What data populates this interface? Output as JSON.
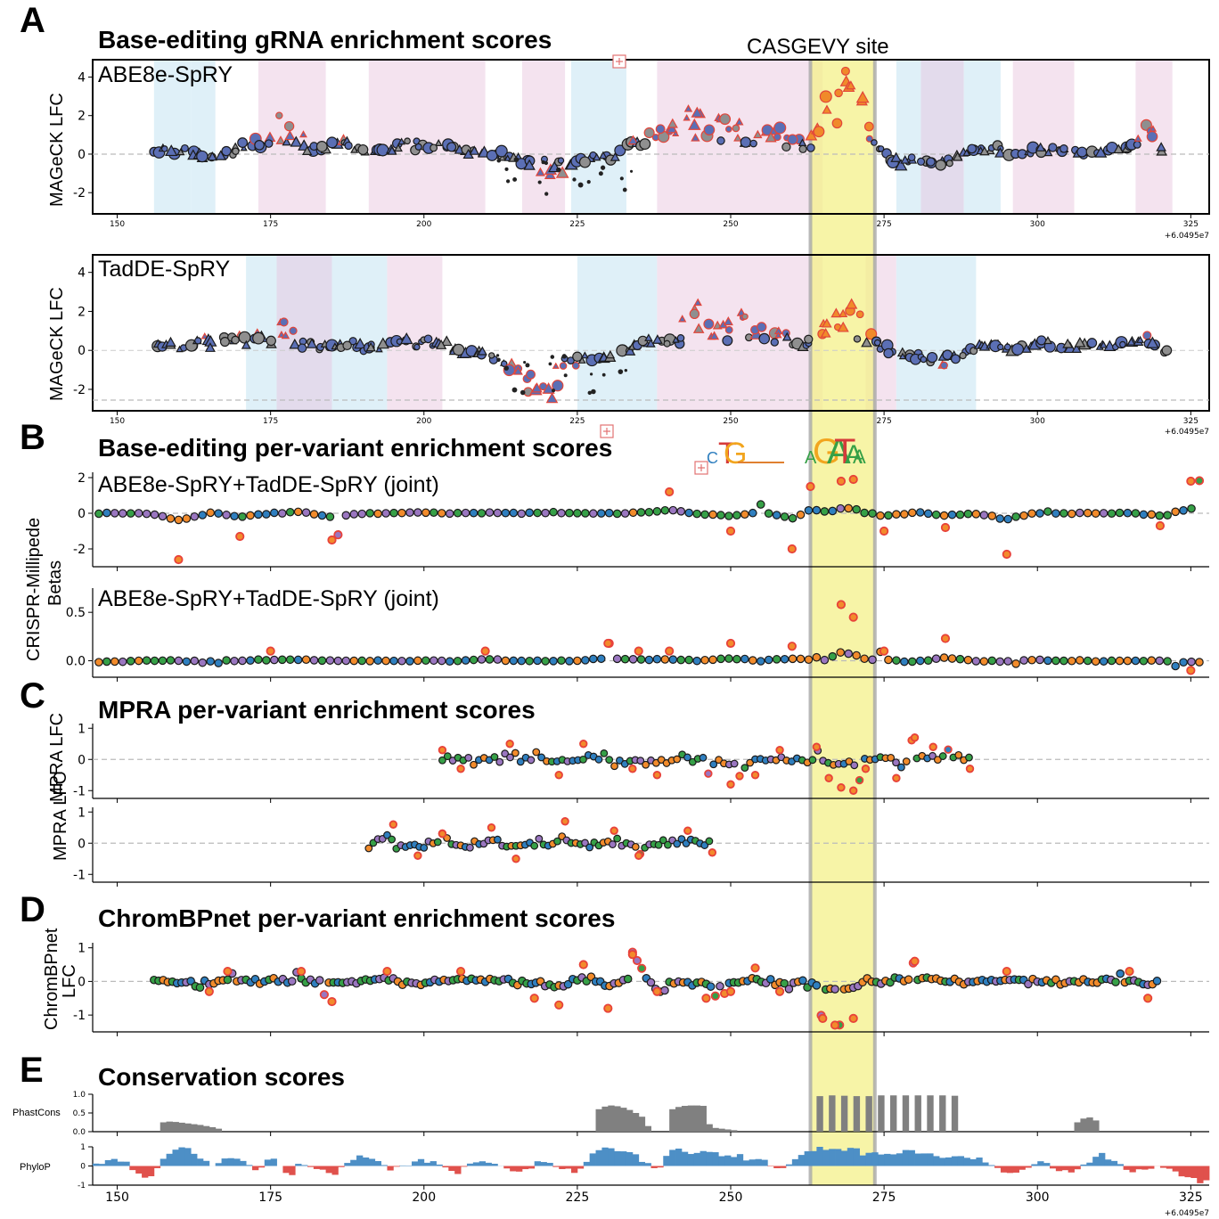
{
  "colors": {
    "highlight": "#f4f08a",
    "highlight_border": "#a8a8a8",
    "guide_blue": "#5b6fb5",
    "guide_grey": "#8f8f8f",
    "guide_red_edge": "#e2453a",
    "guide_orange": "#f08a2a",
    "variant_orange": "#f28b2b",
    "variant_blue": "#2f7fbf",
    "variant_green": "#36a047",
    "variant_purple": "#9a76c0",
    "variant_red_edge": "#e8423a",
    "shade_blue": "#dff0f8",
    "shade_pink": "#f4e3ef",
    "shade_purple": "#e3dbec",
    "phylop_pos": "#4d8fc6",
    "phylop_neg": "#e0514c",
    "phastcons": "#808080"
  },
  "highlight": {
    "label": "CASGEVY site",
    "x_range": [
      263,
      273.5
    ]
  },
  "sections": {
    "A": {
      "letter": "A",
      "title": "Base-editing gRNA enrichment scores"
    },
    "B": {
      "letter": "B",
      "title": "Base-editing per-variant enrichment scores"
    },
    "C": {
      "letter": "C",
      "title": "MPRA per-variant enrichment scores"
    },
    "D": {
      "letter": "D",
      "title": "ChromBPnet per-variant enrichment scores"
    },
    "E": {
      "letter": "E",
      "title": "Conservation scores"
    }
  },
  "panels": {
    "a1": {
      "label": "ABE8e-SpRY",
      "ylabel": "MAGeCK LFC",
      "yticks": [
        "4",
        "2",
        "0",
        "-2"
      ]
    },
    "a2": {
      "label": "TadDE-SpRY",
      "ylabel": "MAGeCK LFC",
      "yticks": [
        "4",
        "2",
        "0",
        "-2"
      ]
    },
    "b1": {
      "label": "ABE8e-SpRY+TadDE-SpRY (joint)",
      "yticks": [
        "2",
        "0",
        "-2"
      ]
    },
    "b2": {
      "label": "ABE8e-SpRY+TadDE-SpRY (joint)",
      "yticks": [
        "0.5",
        "0.0"
      ]
    },
    "b_ylabel_1": "CRISPR-Millipede",
    "b_ylabel_2": "Betas",
    "c1": {
      "ylabel": "",
      "yticks": [
        "1",
        "0",
        "-1"
      ]
    },
    "c2": {
      "ylabel": "MPRA LFC",
      "yticks": [
        "1",
        "0",
        "-1"
      ]
    },
    "c_ylabel_shared": "MPRA LFC",
    "d1": {
      "ylabel_1": "ChromBPnet",
      "ylabel_2": "LFC",
      "yticks": [
        "1",
        "0",
        "-1"
      ]
    },
    "e1": {
      "ylabel": "PhastCons",
      "yticks": [
        "1.0",
        "0.5",
        "0.0"
      ]
    },
    "e2": {
      "ylabel": "PhyloP",
      "yticks": [
        "1",
        "0",
        "-1"
      ]
    }
  },
  "x_axis": {
    "ticks": [
      "150",
      "175",
      "200",
      "225",
      "250",
      "275",
      "300",
      "325"
    ],
    "offset": "+6.0495e7"
  },
  "motif_logos": {
    "left": [
      "C",
      "T",
      "G"
    ],
    "right": [
      "A",
      "G",
      "A",
      "T",
      "A",
      "A"
    ]
  },
  "chart_data": [
    {
      "type": "scatter",
      "panel": "ABE8e-SpRY",
      "xlabel": "",
      "ylabel": "MAGeCK LFC",
      "xlim": [
        146,
        328
      ],
      "ylim": [
        -3.1,
        4.9
      ],
      "x_offset": "+6.0495e7",
      "series": [
        {
          "name": "",
          "x": [
            156,
            160,
            165,
            170,
            174,
            176,
            178,
            182,
            186,
            190,
            195,
            200,
            205,
            210,
            215,
            220,
            225,
            230,
            235,
            240,
            243,
            246,
            250,
            254,
            258,
            262,
            265,
            268,
            270,
            272,
            276,
            280,
            284,
            288,
            292,
            296,
            300,
            305,
            310,
            315,
            318,
            320
          ],
          "y": [
            0.1,
            0.2,
            -0.2,
            0.4,
            1.0,
            2.1,
            1.2,
            0.3,
            0.6,
            0.1,
            0.4,
            0.7,
            0.2,
            0.1,
            -0.3,
            -1.2,
            -0.3,
            -0.2,
            1.0,
            1.4,
            2.4,
            1.5,
            2.0,
            1.2,
            1.3,
            0.2,
            3.5,
            3.8,
            3.0,
            1.0,
            -0.6,
            -0.3,
            -0.5,
            0.2,
            0.3,
            0.0,
            0.3,
            0.2,
            0.1,
            0.4,
            1.5,
            0.1
          ]
        }
      ]
    },
    {
      "type": "scatter",
      "panel": "TadDE-SpRY",
      "xlabel": "",
      "ylabel": "MAGeCK LFC",
      "xlim": [
        146,
        328
      ],
      "ylim": [
        -3.1,
        4.9
      ],
      "x_offset": "+6.0495e7",
      "series": [
        {
          "name": "",
          "x": [
            156,
            160,
            165,
            170,
            174,
            176,
            178,
            182,
            186,
            190,
            195,
            200,
            205,
            210,
            215,
            220,
            225,
            230,
            235,
            240,
            243,
            246,
            250,
            254,
            258,
            262,
            265,
            268,
            270,
            272,
            276,
            280,
            284,
            288,
            292,
            296,
            300,
            305,
            310,
            315,
            318,
            320
          ],
          "y": [
            0.4,
            0.1,
            0.6,
            1.0,
            0.8,
            1.9,
            0.9,
            0.2,
            0.3,
            0.1,
            0.5,
            0.6,
            0.1,
            -0.2,
            -1.8,
            -2.2,
            -0.4,
            -0.3,
            0.4,
            0.8,
            2.7,
            1.3,
            1.8,
            1.0,
            0.9,
            0.0,
            2.6,
            2.8,
            1.9,
            0.6,
            -0.2,
            -0.4,
            -0.9,
            0.1,
            0.3,
            0.1,
            0.4,
            0.2,
            0.2,
            0.5,
            0.6,
            -0.2
          ]
        }
      ]
    },
    {
      "type": "scatter",
      "panel": "ABE8e-SpRY+TadDE-SpRY (joint) 1",
      "ylabel": "CRISPR-Millipede Betas",
      "xlim": [
        146,
        328
      ],
      "ylim": [
        -3,
        2.3
      ],
      "x_offset": "+6.0495e7",
      "series": [
        {
          "name": "",
          "x": [
            150,
            155,
            160,
            165,
            170,
            175,
            180,
            185,
            190,
            195,
            200,
            205,
            210,
            215,
            220,
            225,
            230,
            235,
            240,
            245,
            250,
            255,
            260,
            263,
            266,
            268,
            270,
            272,
            275,
            280,
            285,
            290,
            295,
            300,
            305,
            310,
            315,
            320,
            325
          ],
          "y": [
            0.0,
            0.0,
            -2.6,
            0.2,
            -1.3,
            0.0,
            0.5,
            -1.5,
            0.0,
            0.0,
            0.3,
            0.0,
            0.1,
            0.0,
            0.2,
            0.0,
            0.0,
            0.1,
            1.2,
            -0.3,
            -1.0,
            0.5,
            -2.0,
            1.5,
            0.5,
            1.8,
            1.9,
            0.1,
            -1.0,
            0.3,
            -0.8,
            0.0,
            -2.3,
            0.2,
            0.0,
            0.0,
            0.1,
            -0.7,
            1.8
          ]
        }
      ]
    },
    {
      "type": "scatter",
      "panel": "ABE8e-SpRY+TadDE-SpRY (joint) 2",
      "ylabel": "CRISPR-Millipede Betas",
      "xlim": [
        146,
        328
      ],
      "ylim": [
        -0.17,
        0.75
      ],
      "x_offset": "+6.0495e7",
      "series": [
        {
          "name": "",
          "x": [
            150,
            155,
            160,
            165,
            170,
            175,
            180,
            185,
            190,
            195,
            200,
            205,
            210,
            215,
            220,
            225,
            230,
            235,
            240,
            245,
            250,
            255,
            260,
            265,
            268,
            270,
            272,
            275,
            280,
            285,
            290,
            295,
            300,
            305,
            310,
            315,
            320,
            325
          ],
          "y": [
            -0.06,
            0.0,
            0.0,
            -0.03,
            0.0,
            0.1,
            0.08,
            0.0,
            0.0,
            0.0,
            0.0,
            0.0,
            0.1,
            0.0,
            0.0,
            0.0,
            0.18,
            0.1,
            0.1,
            0.0,
            0.18,
            0.0,
            0.15,
            0.0,
            0.58,
            0.45,
            0.06,
            0.1,
            -0.09,
            0.23,
            0.0,
            -0.06,
            0.05,
            0.0,
            0.0,
            0.0,
            0.0,
            -0.1
          ]
        }
      ]
    },
    {
      "type": "scatter",
      "panel": "MPRA 1",
      "ylabel": "MPRA LFC",
      "xlim": [
        146,
        328
      ],
      "ylim": [
        -1.25,
        1.15
      ],
      "x_offset": "+6.0495e7",
      "series": [
        {
          "name": "",
          "x": [
            203,
            206,
            210,
            214,
            218,
            222,
            226,
            230,
            234,
            238,
            242,
            246,
            250,
            254,
            258,
            262,
            264,
            266,
            268,
            270,
            272,
            274,
            277,
            280,
            283,
            286,
            289
          ],
          "y": [
            0.3,
            -0.3,
            0.1,
            0.5,
            0.2,
            -0.5,
            0.5,
            0.0,
            -0.3,
            -0.5,
            0.2,
            -0.2,
            -0.8,
            -0.5,
            0.3,
            -0.2,
            0.4,
            -0.6,
            -0.9,
            -1.0,
            -0.3,
            0.2,
            -0.6,
            0.7,
            0.4,
            0.1,
            -0.3
          ]
        }
      ]
    },
    {
      "type": "scatter",
      "panel": "MPRA 2",
      "ylabel": "MPRA LFC",
      "xlim": [
        146,
        328
      ],
      "ylim": [
        -1.25,
        1.15
      ],
      "x_offset": "+6.0495e7",
      "series": [
        {
          "name": "",
          "x": [
            191,
            195,
            199,
            203,
            207,
            211,
            215,
            219,
            223,
            227,
            231,
            235,
            239,
            243,
            247
          ],
          "y": [
            0.1,
            0.6,
            -0.4,
            0.3,
            -0.2,
            0.5,
            -0.5,
            0.1,
            0.7,
            -0.2,
            0.4,
            -0.4,
            0.2,
            0.4,
            -0.3
          ]
        }
      ]
    },
    {
      "type": "scatter",
      "panel": "ChromBPnet",
      "ylabel": "ChromBPnet LFC",
      "xlim": [
        146,
        328
      ],
      "ylim": [
        -1.5,
        1.15
      ],
      "x_offset": "+6.0495e7",
      "series": [
        {
          "name": "",
          "x": [
            156,
            160,
            165,
            168,
            172,
            176,
            180,
            185,
            190,
            194,
            198,
            202,
            206,
            210,
            214,
            218,
            222,
            226,
            230,
            234,
            238,
            242,
            246,
            250,
            254,
            258,
            262,
            265,
            267,
            270,
            272,
            276,
            280,
            285,
            290,
            295,
            300,
            305,
            310,
            315,
            318,
            320
          ],
          "y": [
            0.0,
            0.0,
            -0.3,
            0.3,
            0.0,
            0.0,
            0.3,
            -0.6,
            0.0,
            0.3,
            -0.2,
            0.0,
            0.3,
            0.0,
            0.1,
            -0.5,
            -0.7,
            0.5,
            -0.8,
            0.8,
            -0.3,
            -0.2,
            -0.5,
            -0.3,
            0.4,
            -0.3,
            0.0,
            -1.1,
            -1.3,
            -1.1,
            0.0,
            0.0,
            0.6,
            0.0,
            0.0,
            0.3,
            0.0,
            0.0,
            0.0,
            0.3,
            -0.5,
            0.0
          ]
        }
      ]
    },
    {
      "type": "bar",
      "panel": "PhastCons",
      "ylabel": "PhastCons",
      "xlim": [
        146,
        328
      ],
      "ylim": [
        0,
        1.0
      ],
      "x": [
        157,
        158,
        159,
        160,
        161,
        162,
        163,
        164,
        165,
        166,
        228,
        229,
        230,
        231,
        232,
        233,
        234,
        235,
        236,
        240,
        241,
        242,
        243,
        244,
        245,
        246,
        247,
        248,
        249,
        250,
        264,
        266,
        268,
        270,
        272,
        274,
        276,
        278,
        280,
        282,
        284,
        286,
        306,
        307,
        308,
        309
      ],
      "values": [
        0.25,
        0.27,
        0.26,
        0.24,
        0.22,
        0.2,
        0.18,
        0.15,
        0.12,
        0.08,
        0.6,
        0.67,
        0.7,
        0.68,
        0.64,
        0.58,
        0.5,
        0.4,
        0.15,
        0.6,
        0.66,
        0.69,
        0.7,
        0.7,
        0.69,
        0.2,
        0.1,
        0.08,
        0.06,
        0.04,
        0.95,
        0.97,
        0.96,
        0.95,
        0.95,
        0.97,
        0.97,
        0.97,
        0.97,
        0.97,
        0.97,
        0.96,
        0.25,
        0.35,
        0.38,
        0.3
      ]
    },
    {
      "type": "area",
      "panel": "PhyloP",
      "ylabel": "PhyloP",
      "xlim": [
        146,
        328
      ],
      "ylim": [
        -1,
        1
      ],
      "x": [
        146,
        150,
        153,
        155,
        157,
        160,
        163,
        165,
        168,
        170,
        173,
        175,
        178,
        180,
        185,
        190,
        195,
        200,
        205,
        210,
        215,
        220,
        225,
        228,
        232,
        235,
        238,
        240,
        245,
        250,
        255,
        258,
        262,
        264,
        268,
        272,
        275,
        280,
        285,
        290,
        295,
        300,
        305,
        310,
        315,
        320,
        325,
        328
      ],
      "y": [
        0.0,
        0.5,
        -0.3,
        -0.9,
        0.3,
        0.9,
        0.6,
        0.0,
        0.4,
        0.5,
        -0.4,
        0.5,
        -0.5,
        0.2,
        -0.4,
        0.6,
        -0.3,
        0.4,
        -0.3,
        0.4,
        -0.4,
        0.3,
        -0.4,
        0.8,
        0.9,
        0.5,
        -0.3,
        0.8,
        0.7,
        0.5,
        0.3,
        -0.2,
        0.7,
        0.9,
        0.8,
        0.7,
        0.6,
        0.8,
        0.5,
        0.4,
        -0.5,
        0.2,
        -0.4,
        0.6,
        -0.3,
        0.0,
        -0.7,
        -0.8
      ]
    }
  ]
}
